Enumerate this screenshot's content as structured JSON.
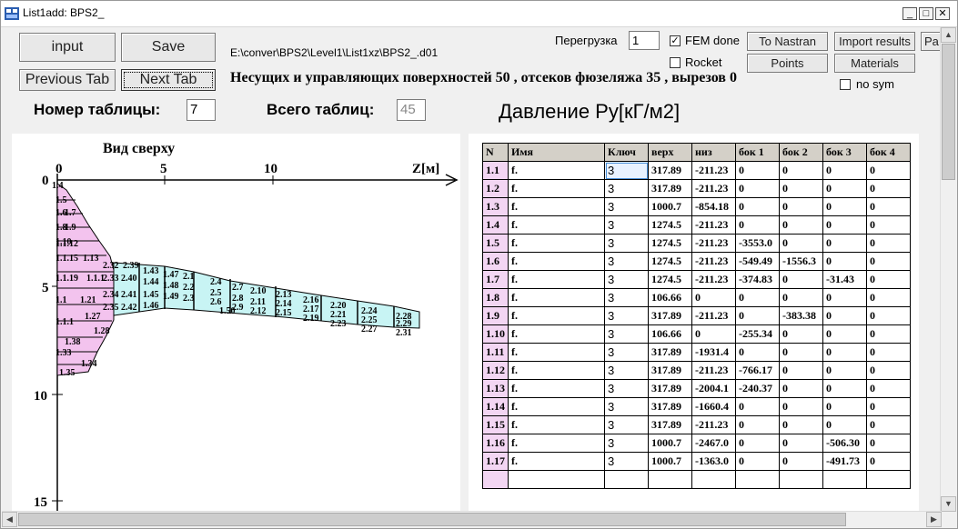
{
  "window": {
    "title": "List1add: BPS2_",
    "minimize": "_",
    "maximize": "□",
    "close": "✕"
  },
  "toolbar": {
    "input_label": "input",
    "save_label": "Save",
    "prev_tab_label": "Previous Tab",
    "next_tab_label": "Next Tab",
    "file_path": "E:\\conver\\BPS2\\Level1\\List1xz\\BPS2_.d01",
    "summary": "Несущих и управляющих поверхностей 50 , отсеков фюзеляжа 35 , вырезов 0",
    "overload_label": "Перегрузка",
    "overload_value": "1",
    "fem_done_label": "FEM done",
    "fem_done_checked": true,
    "rocket_label": "Rocket",
    "rocket_checked": false,
    "to_nastran_label": "To Nastran",
    "import_results_label": "Import results",
    "pa_label": "Pa",
    "points_label": "Points",
    "materials_label": "Materials",
    "nosym_label": "no sym",
    "nosym_checked": false
  },
  "table_controls": {
    "table_number_label": "Номер таблицы:",
    "table_number_value": "7",
    "total_tables_label": "Всего таблиц:",
    "total_tables_value": "45",
    "table_title": "Давление Ру[кГ/м2]"
  },
  "view": {
    "title": "Вид сверху",
    "x_ticks": [
      "0",
      "5",
      "10"
    ],
    "x_axis_label": "Z[м]",
    "y_ticks": [
      "0",
      "5",
      "10",
      "15"
    ],
    "fuselage_labels": [
      "1.4",
      "1.5",
      "1.6",
      "1.7",
      "1.8",
      "1.9",
      "1.10",
      "1.1.12",
      "1.1.15",
      "1.13",
      "1.1.19",
      "1.1.1",
      "1.21",
      "1.1",
      "1.27",
      "1.1.1",
      "1.28",
      "1.38",
      "1.33",
      "1.34",
      "1.35"
    ],
    "wing_labels": [
      "2.32",
      "2.39",
      "2.33",
      "2.40",
      "2.34",
      "2.41",
      "2.35",
      "2.42",
      "1.43",
      "1.44",
      "1.45",
      "1.46",
      "1.47",
      "1.48",
      "1.49",
      "1.50",
      "2.1",
      "2.2",
      "2.3",
      "2.4",
      "2.5",
      "2.6",
      "2.7",
      "2.8",
      "2.9",
      "2.10",
      "2.11",
      "2.12",
      "2.13",
      "2.14",
      "2.15",
      "2.16",
      "2.17",
      "2.19",
      "2.20",
      "2.21",
      "2.23",
      "2.24",
      "2.25",
      "2.27",
      "2.28",
      "2.29",
      "2.31"
    ]
  },
  "grid": {
    "headers": [
      "N",
      "Имя",
      "Ключ",
      "верх",
      "низ",
      "бок 1",
      "бок 2",
      "бок 3",
      "бок 4"
    ],
    "rows": [
      [
        "1.1",
        "f.",
        "3",
        "317.89",
        "-211.23",
        "0",
        "0",
        "0",
        "0"
      ],
      [
        "1.2",
        "f.",
        "3",
        "317.89",
        "-211.23",
        "0",
        "0",
        "0",
        "0"
      ],
      [
        "1.3",
        "f.",
        "3",
        "1000.7",
        "-854.18",
        "0",
        "0",
        "0",
        "0"
      ],
      [
        "1.4",
        "f.",
        "3",
        "1274.5",
        "-211.23",
        "0",
        "0",
        "0",
        "0"
      ],
      [
        "1.5",
        "f.",
        "3",
        "1274.5",
        "-211.23",
        "-3553.0",
        "0",
        "0",
        "0"
      ],
      [
        "1.6",
        "f.",
        "3",
        "1274.5",
        "-211.23",
        "-549.49",
        "-1556.3",
        "0",
        "0"
      ],
      [
        "1.7",
        "f.",
        "3",
        "1274.5",
        "-211.23",
        "-374.83",
        "0",
        "-31.43",
        "0"
      ],
      [
        "1.8",
        "f.",
        "3",
        "106.66",
        "0",
        "0",
        "0",
        "0",
        "0"
      ],
      [
        "1.9",
        "f.",
        "3",
        "317.89",
        "-211.23",
        "0",
        "-383.38",
        "0",
        "0"
      ],
      [
        "1.10",
        "f.",
        "3",
        "106.66",
        "0",
        "-255.34",
        "0",
        "0",
        "0"
      ],
      [
        "1.11",
        "f.",
        "3",
        "317.89",
        "-1931.4",
        "0",
        "0",
        "0",
        "0"
      ],
      [
        "1.12",
        "f.",
        "3",
        "317.89",
        "-211.23",
        "-766.17",
        "0",
        "0",
        "0"
      ],
      [
        "1.13",
        "f.",
        "3",
        "317.89",
        "-2004.1",
        "-240.37",
        "0",
        "0",
        "0"
      ],
      [
        "1.14",
        "f.",
        "3",
        "317.89",
        "-1660.4",
        "0",
        "0",
        "0",
        "0"
      ],
      [
        "1.15",
        "f.",
        "3",
        "317.89",
        "-211.23",
        "0",
        "0",
        "0",
        "0"
      ],
      [
        "1.16",
        "f.",
        "3",
        "1000.7",
        "-2467.0",
        "0",
        "0",
        "-506.30",
        "0"
      ],
      [
        "1.17",
        "f.",
        "3",
        "1000.7",
        "-1363.0",
        "0",
        "0",
        "-491.73",
        "0"
      ],
      [
        "",
        "",
        "",
        "",
        "",
        "",
        "",
        "",
        ""
      ]
    ]
  },
  "colors": {
    "fuselage_fill": "#f3c3ee",
    "wing_fill": "#c8f4f4",
    "row_header": "#f3d6f3"
  }
}
